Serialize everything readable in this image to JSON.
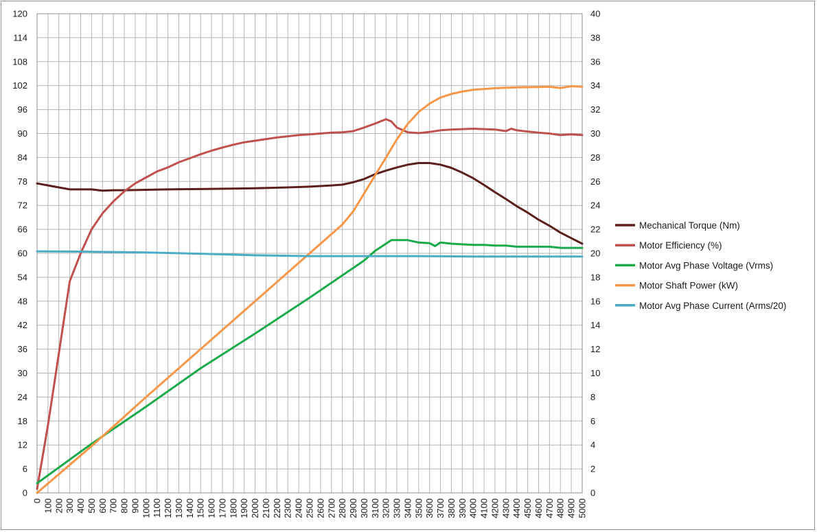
{
  "chart_data": {
    "type": "line",
    "x_ticks": [
      0,
      100,
      200,
      300,
      400,
      500,
      600,
      700,
      800,
      900,
      1000,
      1100,
      1200,
      1300,
      1400,
      1500,
      1600,
      1700,
      1800,
      1900,
      2000,
      2100,
      2200,
      2300,
      2400,
      2500,
      2600,
      2700,
      2800,
      2900,
      3000,
      3100,
      3200,
      3300,
      3400,
      3500,
      3600,
      3700,
      3800,
      3900,
      4000,
      4100,
      4200,
      4300,
      4400,
      4500,
      4600,
      4700,
      4800,
      4900,
      5000
    ],
    "xlim": [
      0,
      5000
    ],
    "y_left_ticks": [
      "0",
      "6",
      "12",
      "18",
      "24",
      "30",
      "36",
      "42",
      "48",
      "54",
      "60",
      "66",
      "72",
      "78",
      "84",
      "90",
      "96",
      "102",
      "108",
      "114",
      "120"
    ],
    "y_left_lim": [
      0,
      120
    ],
    "y_right_ticks": [
      "0",
      "2",
      "4",
      "6",
      "8",
      "10",
      "12",
      "14",
      "16",
      "18",
      "20",
      "22",
      "24",
      "26",
      "28",
      "30",
      "32",
      "34",
      "36",
      "38",
      "40"
    ],
    "y_right_lim": [
      0,
      40
    ],
    "grid": true,
    "legend_position": "right",
    "series": [
      {
        "name": "Mechanical Torque   (Nm)",
        "color": "#5b1f1d",
        "axis": "left",
        "points": [
          [
            0,
            77.5
          ],
          [
            100,
            77
          ],
          [
            200,
            76.5
          ],
          [
            300,
            76
          ],
          [
            400,
            76
          ],
          [
            500,
            76
          ],
          [
            600,
            75.7
          ],
          [
            700,
            75.8
          ],
          [
            800,
            75.8
          ],
          [
            1000,
            75.9
          ],
          [
            1200,
            76
          ],
          [
            1500,
            76.1
          ],
          [
            1800,
            76.2
          ],
          [
            2000,
            76.3
          ],
          [
            2300,
            76.5
          ],
          [
            2500,
            76.7
          ],
          [
            2700,
            77
          ],
          [
            2800,
            77.2
          ],
          [
            2900,
            77.8
          ],
          [
            3000,
            78.6
          ],
          [
            3100,
            79.8
          ],
          [
            3200,
            80.7
          ],
          [
            3300,
            81.5
          ],
          [
            3400,
            82.2
          ],
          [
            3500,
            82.6
          ],
          [
            3600,
            82.6
          ],
          [
            3700,
            82.2
          ],
          [
            3800,
            81.4
          ],
          [
            3900,
            80.2
          ],
          [
            4000,
            78.8
          ],
          [
            4100,
            77.1
          ],
          [
            4200,
            75.3
          ],
          [
            4300,
            73.6
          ],
          [
            4400,
            71.8
          ],
          [
            4500,
            70.2
          ],
          [
            4600,
            68.4
          ],
          [
            4700,
            66.9
          ],
          [
            4800,
            65.2
          ],
          [
            4900,
            63.8
          ],
          [
            5000,
            62.4
          ]
        ]
      },
      {
        "name": "Motor Efficiency (%)",
        "color": "#c0504d",
        "axis": "left",
        "points": [
          [
            0,
            1
          ],
          [
            100,
            17
          ],
          [
            200,
            35
          ],
          [
            300,
            53
          ],
          [
            400,
            60
          ],
          [
            500,
            66
          ],
          [
            600,
            70
          ],
          [
            700,
            73
          ],
          [
            800,
            75.5
          ],
          [
            900,
            77.5
          ],
          [
            1000,
            79
          ],
          [
            1100,
            80.5
          ],
          [
            1200,
            81.5
          ],
          [
            1300,
            82.8
          ],
          [
            1400,
            83.8
          ],
          [
            1500,
            84.8
          ],
          [
            1600,
            85.7
          ],
          [
            1700,
            86.5
          ],
          [
            1800,
            87.2
          ],
          [
            1900,
            87.8
          ],
          [
            2000,
            88.2
          ],
          [
            2100,
            88.6
          ],
          [
            2200,
            89
          ],
          [
            2300,
            89.3
          ],
          [
            2400,
            89.6
          ],
          [
            2500,
            89.8
          ],
          [
            2600,
            90
          ],
          [
            2700,
            90.2
          ],
          [
            2800,
            90.3
          ],
          [
            2900,
            90.6
          ],
          [
            3000,
            91.5
          ],
          [
            3100,
            92.5
          ],
          [
            3200,
            93.6
          ],
          [
            3250,
            93
          ],
          [
            3300,
            91.5
          ],
          [
            3400,
            90.3
          ],
          [
            3500,
            90.1
          ],
          [
            3600,
            90.4
          ],
          [
            3700,
            90.8
          ],
          [
            3800,
            91
          ],
          [
            3900,
            91.1
          ],
          [
            4000,
            91.2
          ],
          [
            4100,
            91.1
          ],
          [
            4200,
            91
          ],
          [
            4300,
            90.6
          ],
          [
            4350,
            91.2
          ],
          [
            4400,
            90.8
          ],
          [
            4500,
            90.5
          ],
          [
            4600,
            90.2
          ],
          [
            4700,
            90
          ],
          [
            4800,
            89.6
          ],
          [
            4900,
            89.8
          ],
          [
            5000,
            89.6
          ]
        ]
      },
      {
        "name": "Motor Avg Phase Voltage (Vrms)",
        "color": "#1aaa4a",
        "axis": "right",
        "points": [
          [
            0,
            0.8
          ],
          [
            500,
            4.1
          ],
          [
            1000,
            7.2
          ],
          [
            1500,
            10.4
          ],
          [
            2000,
            13.3
          ],
          [
            2500,
            16.3
          ],
          [
            3000,
            19.4
          ],
          [
            3100,
            20.2
          ],
          [
            3200,
            20.8
          ],
          [
            3250,
            21.1
          ],
          [
            3300,
            21.1
          ],
          [
            3400,
            21.1
          ],
          [
            3500,
            20.9
          ],
          [
            3600,
            20.85
          ],
          [
            3650,
            20.6
          ],
          [
            3700,
            20.9
          ],
          [
            3800,
            20.8
          ],
          [
            3900,
            20.75
          ],
          [
            4000,
            20.7
          ],
          [
            4100,
            20.7
          ],
          [
            4200,
            20.65
          ],
          [
            4300,
            20.65
          ],
          [
            4400,
            20.55
          ],
          [
            4500,
            20.55
          ],
          [
            4600,
            20.55
          ],
          [
            4700,
            20.55
          ],
          [
            4800,
            20.45
          ],
          [
            4900,
            20.45
          ],
          [
            5000,
            20.45
          ]
        ]
      },
      {
        "name": "Motor Shaft Power (kW)",
        "color": "#f79646",
        "axis": "right",
        "points": [
          [
            0,
            0
          ],
          [
            500,
            3.9
          ],
          [
            1000,
            8.0
          ],
          [
            1500,
            12.0
          ],
          [
            2000,
            16.0
          ],
          [
            2500,
            20.0
          ],
          [
            2800,
            22.4
          ],
          [
            2900,
            23.5
          ],
          [
            3000,
            25.0
          ],
          [
            3100,
            26.5
          ],
          [
            3200,
            28.0
          ],
          [
            3300,
            29.5
          ],
          [
            3400,
            30.8
          ],
          [
            3500,
            31.8
          ],
          [
            3600,
            32.5
          ],
          [
            3700,
            33.0
          ],
          [
            3800,
            33.3
          ],
          [
            3900,
            33.5
          ],
          [
            4000,
            33.65
          ],
          [
            4200,
            33.78
          ],
          [
            4400,
            33.85
          ],
          [
            4600,
            33.88
          ],
          [
            4700,
            33.9
          ],
          [
            4800,
            33.8
          ],
          [
            4900,
            33.95
          ],
          [
            5000,
            33.9
          ]
        ]
      },
      {
        "name": "Motor Avg Phase Current (Arms/20)",
        "color": "#4bacc6",
        "axis": "left",
        "points": [
          [
            0,
            60.5
          ],
          [
            500,
            60.4
          ],
          [
            1000,
            60.2
          ],
          [
            1500,
            59.9
          ],
          [
            2000,
            59.5
          ],
          [
            2500,
            59.3
          ],
          [
            3000,
            59.3
          ],
          [
            3500,
            59.3
          ],
          [
            4000,
            59.2
          ],
          [
            4500,
            59.2
          ],
          [
            5000,
            59.2
          ]
        ]
      }
    ]
  }
}
